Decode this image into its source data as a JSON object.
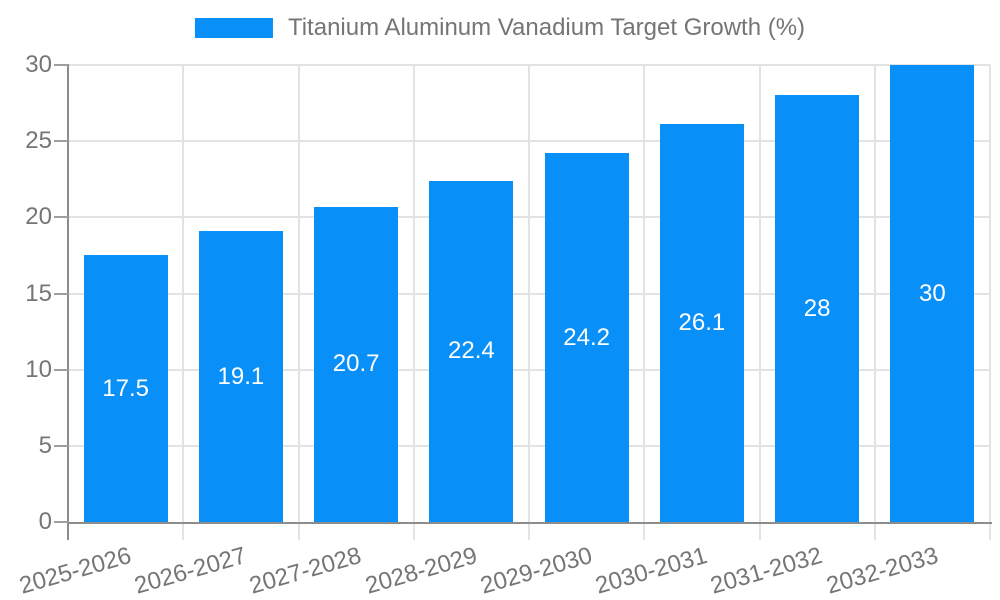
{
  "legend": {
    "label": "Titanium Aluminum Vanadium Target Growth (%)"
  },
  "colors": {
    "bar": "#0890f8",
    "grid": "#e3e3e3",
    "axis_line": "#8c8c8c",
    "tick": "#9e9e9e",
    "axis_label": "#757575",
    "value_label": "#ffffff",
    "background": "#ffffff"
  },
  "chart_data": {
    "type": "bar",
    "title": "Titanium Aluminum Vanadium Target Growth (%)",
    "categories": [
      "2025-2026",
      "2026-2027",
      "2027-2028",
      "2028-2029",
      "2029-2030",
      "2030-2031",
      "2031-2032",
      "2032-2033"
    ],
    "series": [
      {
        "name": "Titanium Aluminum Vanadium Target Growth (%)",
        "values": [
          17.5,
          19.1,
          20.7,
          22.4,
          24.2,
          26.1,
          28,
          30
        ]
      }
    ],
    "value_labels": [
      "17.5",
      "19.1",
      "20.7",
      "22.4",
      "24.2",
      "26.1",
      "28",
      "30"
    ],
    "xlabel": "",
    "ylabel": "",
    "ylim": [
      0,
      30
    ],
    "yticks": [
      0,
      5,
      10,
      15,
      20,
      25,
      30
    ],
    "ytick_labels": [
      "0",
      "5",
      "10",
      "15",
      "20",
      "25",
      "30"
    ],
    "grid": true,
    "legend_position": "top-center",
    "x_label_rotation_deg": -16
  }
}
